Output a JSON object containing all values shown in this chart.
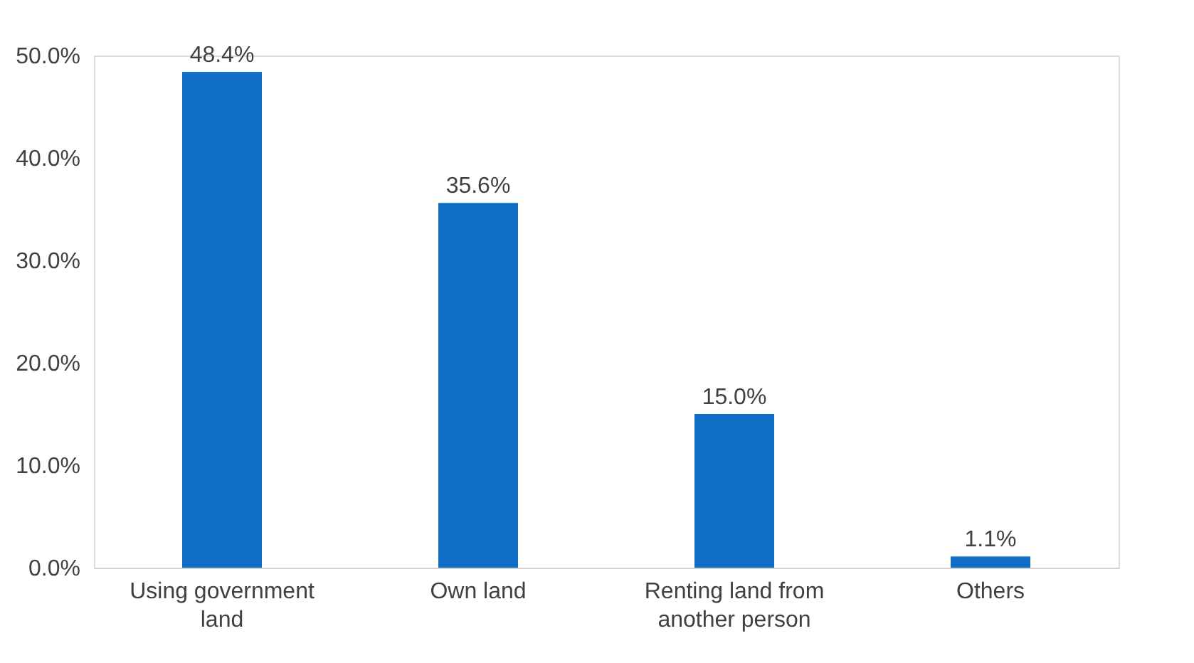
{
  "chart_data": {
    "type": "bar",
    "categories": [
      "Using government land",
      "Own land",
      "Renting land from another person",
      "Others"
    ],
    "values": [
      48.4,
      35.6,
      15.0,
      1.1
    ],
    "color": "#1070c8",
    "value_labels": [
      "48.4%",
      "35.6%",
      "15.0%",
      "1.1%"
    ],
    "ylim": [
      0,
      50
    ],
    "yticks": [
      {
        "value": 0,
        "label": "0.0%"
      },
      {
        "value": 10,
        "label": "10.0%"
      },
      {
        "value": 20,
        "label": "20.0%"
      },
      {
        "value": 30,
        "label": "30.0%"
      },
      {
        "value": 40,
        "label": "40.0%"
      },
      {
        "value": 50,
        "label": "50.0%"
      }
    ],
    "grid": false
  }
}
